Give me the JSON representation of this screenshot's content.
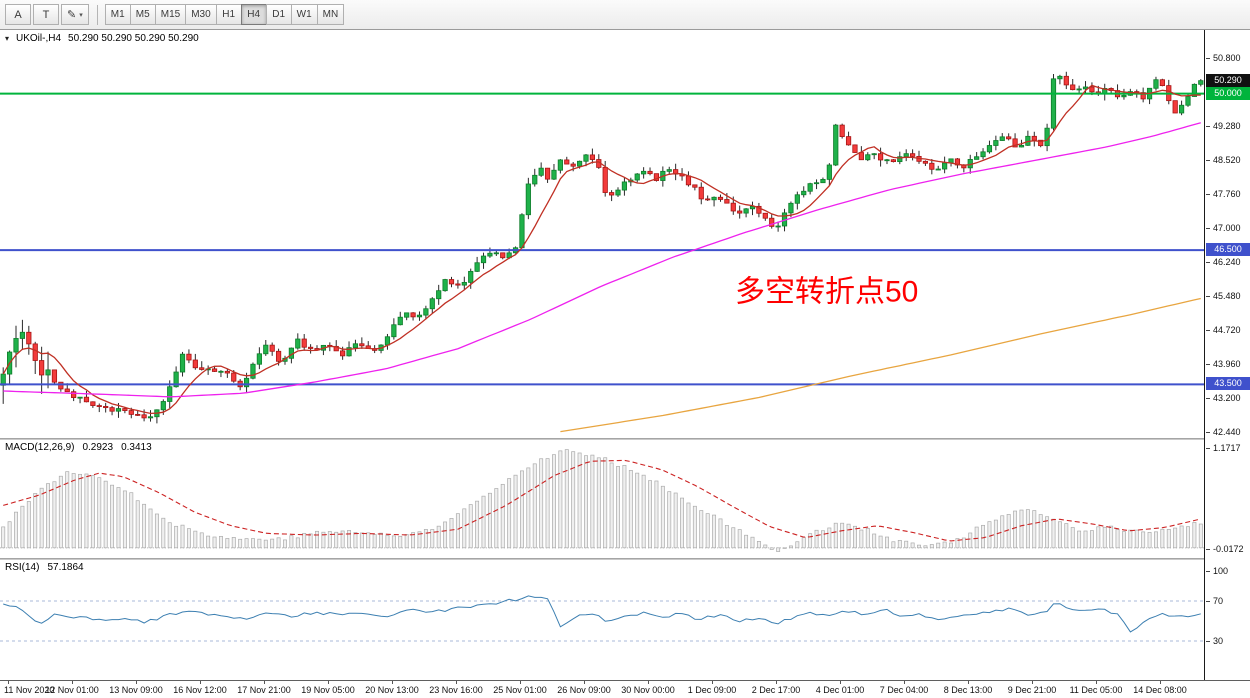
{
  "toolbar": {
    "tools": [
      {
        "id": "annotation",
        "label": "A",
        "dropdown": false
      },
      {
        "id": "text",
        "label": "T",
        "dropdown": false
      },
      {
        "id": "colors",
        "label": "✎",
        "dropdown": true
      }
    ],
    "timeframes": [
      "M1",
      "M5",
      "M15",
      "M30",
      "H1",
      "H4",
      "D1",
      "W1",
      "MN"
    ],
    "active_timeframe": "H4",
    "dropdown_glyph": "▾"
  },
  "main_chart": {
    "title": "UKOil-,H4",
    "ohlc_text": "50.290 50.290 50.290 50.290",
    "ylim": [
      42.3,
      51.4
    ],
    "axis_ticks": [
      "50.800",
      "49.280",
      "48.520",
      "47.760",
      "47.000",
      "46.240",
      "45.480",
      "44.720",
      "43.960",
      "43.200",
      "42.440"
    ],
    "price_badge": {
      "text": "50.290",
      "bg": "#111111"
    },
    "hlines": [
      {
        "price": 50.0,
        "label": "50.000",
        "color": "#00b43c"
      },
      {
        "price": 46.5,
        "label": "46.500",
        "color": "#3f51cc"
      },
      {
        "price": 43.5,
        "label": "43.500",
        "color": "#3f51cc"
      }
    ],
    "annotation": {
      "text": "多空转折点50",
      "color": "#ff0000",
      "x": 735,
      "price": 45.35
    },
    "colors": {
      "up": "#1fb14a",
      "up_border": "#0e7d2a",
      "down": "#f23b3b",
      "down_border": "#a81414",
      "wick": "#2a2a2a",
      "ma_fast": "#c03024",
      "ma_mid": "#ee22ee",
      "ma_slow": "#e8a540"
    }
  },
  "macd_panel": {
    "label": "MACD(12,26,9)",
    "value_main": "0.2923",
    "value_signal": "0.3413",
    "ylim": [
      -0.12,
      1.27
    ],
    "axis_ticks": [
      {
        "v": 1.1717,
        "label": "1.1717"
      },
      {
        "v": -0.0172,
        "label": "-0.0172"
      }
    ]
  },
  "rsi_panel": {
    "label": "RSI(14)",
    "value": "57.1864",
    "ylim": [
      -9,
      111
    ],
    "levels": [
      70,
      30
    ],
    "axis_ticks": [
      {
        "v": 100,
        "label": "100"
      },
      {
        "v": 70,
        "label": "70"
      },
      {
        "v": 30,
        "label": "30"
      }
    ]
  },
  "time_axis": {
    "labels": [
      "11 Nov 2020",
      "12 Nov 01:00",
      "13 Nov 09:00",
      "16 Nov 12:00",
      "17 Nov 21:00",
      "19 Nov 05:00",
      "20 Nov 13:00",
      "23 Nov 16:00",
      "25 Nov 01:00",
      "26 Nov 09:00",
      "30 Nov 00:00",
      "1 Dec 09:00",
      "2 Dec 17:00",
      "4 Dec 01:00",
      "7 Dec 04:00",
      "8 Dec 13:00",
      "9 Dec 21:00",
      "11 Dec 05:00",
      "14 Dec 08:00"
    ]
  },
  "chart_data": [
    {
      "type": "candlestick",
      "symbol": "UKOil-",
      "timeframe": "H4",
      "title": "UKOil-,H4 50.290 50.290 50.290 50.290",
      "x_range": [
        "11 Nov 2020",
        "14 Dec 08:00"
      ],
      "ylim": [
        42.3,
        51.4
      ],
      "y_ticks": [
        50.8,
        49.28,
        48.52,
        47.76,
        47.0,
        46.24,
        45.48,
        44.72,
        43.96,
        43.2,
        42.44
      ],
      "horizontal_levels": [
        50.0,
        46.5,
        43.5
      ],
      "last_price": 50.29,
      "close_anchors": [
        [
          0,
          43.9
        ],
        [
          0.01,
          44.35
        ],
        [
          0.022,
          44.6
        ],
        [
          0.03,
          43.9
        ],
        [
          0.045,
          43.5
        ],
        [
          0.06,
          43.2
        ],
        [
          0.075,
          43.05
        ],
        [
          0.09,
          42.95
        ],
        [
          0.105,
          42.85
        ],
        [
          0.118,
          42.7
        ],
        [
          0.13,
          42.95
        ],
        [
          0.142,
          43.6
        ],
        [
          0.15,
          44.15
        ],
        [
          0.158,
          43.9
        ],
        [
          0.17,
          43.85
        ],
        [
          0.185,
          43.75
        ],
        [
          0.198,
          43.45
        ],
        [
          0.21,
          44.0
        ],
        [
          0.22,
          44.35
        ],
        [
          0.232,
          44.0
        ],
        [
          0.245,
          44.5
        ],
        [
          0.258,
          44.25
        ],
        [
          0.27,
          44.4
        ],
        [
          0.283,
          44.15
        ],
        [
          0.295,
          44.45
        ],
        [
          0.308,
          44.2
        ],
        [
          0.32,
          44.55
        ],
        [
          0.333,
          45.1
        ],
        [
          0.345,
          44.95
        ],
        [
          0.358,
          45.35
        ],
        [
          0.37,
          45.85
        ],
        [
          0.382,
          45.65
        ],
        [
          0.395,
          46.15
        ],
        [
          0.405,
          46.5
        ],
        [
          0.418,
          46.35
        ],
        [
          0.428,
          46.6
        ],
        [
          0.438,
          47.9
        ],
        [
          0.447,
          48.35
        ],
        [
          0.455,
          48.1
        ],
        [
          0.465,
          48.55
        ],
        [
          0.475,
          48.3
        ],
        [
          0.487,
          48.65
        ],
        [
          0.497,
          48.35
        ],
        [
          0.505,
          47.6
        ],
        [
          0.515,
          47.9
        ],
        [
          0.525,
          48.1
        ],
        [
          0.535,
          48.25
        ],
        [
          0.545,
          48.1
        ],
        [
          0.555,
          48.3
        ],
        [
          0.565,
          48.15
        ],
        [
          0.575,
          47.95
        ],
        [
          0.585,
          47.6
        ],
        [
          0.595,
          47.75
        ],
        [
          0.605,
          47.5
        ],
        [
          0.615,
          47.3
        ],
        [
          0.625,
          47.55
        ],
        [
          0.635,
          47.2
        ],
        [
          0.645,
          46.95
        ],
        [
          0.655,
          47.45
        ],
        [
          0.665,
          47.8
        ],
        [
          0.677,
          48.0
        ],
        [
          0.688,
          48.1
        ],
        [
          0.695,
          49.25
        ],
        [
          0.705,
          48.9
        ],
        [
          0.715,
          48.55
        ],
        [
          0.727,
          48.65
        ],
        [
          0.74,
          48.45
        ],
        [
          0.753,
          48.7
        ],
        [
          0.765,
          48.45
        ],
        [
          0.778,
          48.3
        ],
        [
          0.79,
          48.55
        ],
        [
          0.8,
          48.35
        ],
        [
          0.812,
          48.6
        ],
        [
          0.824,
          48.85
        ],
        [
          0.836,
          49.05
        ],
        [
          0.846,
          48.8
        ],
        [
          0.856,
          49.0
        ],
        [
          0.866,
          48.85
        ],
        [
          0.872,
          49.3
        ],
        [
          0.878,
          50.55
        ],
        [
          0.885,
          50.35
        ],
        [
          0.893,
          50.05
        ],
        [
          0.903,
          50.15
        ],
        [
          0.913,
          49.95
        ],
        [
          0.923,
          50.15
        ],
        [
          0.933,
          49.9
        ],
        [
          0.943,
          50.05
        ],
        [
          0.953,
          49.85
        ],
        [
          0.962,
          50.35
        ],
        [
          0.97,
          50.15
        ],
        [
          0.977,
          49.55
        ],
        [
          0.984,
          49.75
        ],
        [
          0.992,
          50.1
        ],
        [
          1,
          50.29
        ]
      ],
      "ma_mid_anchors": [
        [
          0,
          43.35
        ],
        [
          0.08,
          43.28
        ],
        [
          0.14,
          43.22
        ],
        [
          0.2,
          43.3
        ],
        [
          0.26,
          43.55
        ],
        [
          0.32,
          43.85
        ],
        [
          0.38,
          44.3
        ],
        [
          0.44,
          44.95
        ],
        [
          0.5,
          45.7
        ],
        [
          0.56,
          46.35
        ],
        [
          0.62,
          46.9
        ],
        [
          0.68,
          47.4
        ],
        [
          0.74,
          47.85
        ],
        [
          0.8,
          48.2
        ],
        [
          0.86,
          48.5
        ],
        [
          0.92,
          48.8
        ],
        [
          0.96,
          49.05
        ],
        [
          1,
          49.35
        ]
      ],
      "ma_slow_anchors": [
        [
          0.46,
          42.42
        ],
        [
          0.55,
          42.8
        ],
        [
          0.63,
          43.2
        ],
        [
          0.71,
          43.7
        ],
        [
          0.79,
          44.15
        ],
        [
          0.87,
          44.65
        ],
        [
          0.94,
          45.05
        ],
        [
          1,
          45.42
        ]
      ]
    },
    {
      "type": "macd",
      "params": "12,26,9",
      "current_macd": 0.2923,
      "current_signal": 0.3413,
      "ylim": [
        -0.12,
        1.27
      ],
      "hist_anchors": [
        [
          0,
          0.25
        ],
        [
          0.02,
          0.55
        ],
        [
          0.05,
          0.88
        ],
        [
          0.08,
          0.85
        ],
        [
          0.11,
          0.6
        ],
        [
          0.14,
          0.3
        ],
        [
          0.17,
          0.15
        ],
        [
          0.2,
          0.1
        ],
        [
          0.24,
          0.12
        ],
        [
          0.27,
          0.2
        ],
        [
          0.3,
          0.18
        ],
        [
          0.33,
          0.14
        ],
        [
          0.36,
          0.22
        ],
        [
          0.39,
          0.5
        ],
        [
          0.42,
          0.8
        ],
        [
          0.45,
          1.05
        ],
        [
          0.47,
          1.15
        ],
        [
          0.5,
          1.05
        ],
        [
          0.53,
          0.9
        ],
        [
          0.56,
          0.65
        ],
        [
          0.59,
          0.4
        ],
        [
          0.62,
          0.15
        ],
        [
          0.645,
          -0.03
        ],
        [
          0.66,
          0.05
        ],
        [
          0.68,
          0.2
        ],
        [
          0.7,
          0.3
        ],
        [
          0.72,
          0.22
        ],
        [
          0.74,
          0.1
        ],
        [
          0.76,
          0.04
        ],
        [
          0.78,
          0.03
        ],
        [
          0.8,
          0.12
        ],
        [
          0.82,
          0.28
        ],
        [
          0.84,
          0.4
        ],
        [
          0.86,
          0.44
        ],
        [
          0.88,
          0.32
        ],
        [
          0.9,
          0.18
        ],
        [
          0.92,
          0.26
        ],
        [
          0.94,
          0.2
        ],
        [
          0.96,
          0.18
        ],
        [
          0.98,
          0.24
        ],
        [
          1,
          0.29
        ]
      ],
      "signal_anchors": [
        [
          0,
          0.5
        ],
        [
          0.03,
          0.62
        ],
        [
          0.06,
          0.8
        ],
        [
          0.08,
          0.88
        ],
        [
          0.1,
          0.84
        ],
        [
          0.13,
          0.65
        ],
        [
          0.16,
          0.42
        ],
        [
          0.19,
          0.26
        ],
        [
          0.22,
          0.17
        ],
        [
          0.26,
          0.15
        ],
        [
          0.3,
          0.17
        ],
        [
          0.34,
          0.15
        ],
        [
          0.38,
          0.22
        ],
        [
          0.42,
          0.5
        ],
        [
          0.46,
          0.85
        ],
        [
          0.49,
          1.02
        ],
        [
          0.52,
          1.03
        ],
        [
          0.55,
          0.92
        ],
        [
          0.58,
          0.72
        ],
        [
          0.61,
          0.48
        ],
        [
          0.64,
          0.25
        ],
        [
          0.67,
          0.12
        ],
        [
          0.7,
          0.2
        ],
        [
          0.73,
          0.26
        ],
        [
          0.76,
          0.18
        ],
        [
          0.79,
          0.08
        ],
        [
          0.82,
          0.12
        ],
        [
          0.85,
          0.26
        ],
        [
          0.88,
          0.34
        ],
        [
          0.91,
          0.28
        ],
        [
          0.94,
          0.2
        ],
        [
          0.97,
          0.24
        ],
        [
          1,
          0.34
        ]
      ]
    },
    {
      "type": "rsi",
      "period": 14,
      "current": 57.1864,
      "levels": [
        70,
        30
      ],
      "ylim": [
        -9,
        111
      ],
      "anchors": [
        [
          0,
          66
        ],
        [
          0.015,
          62
        ],
        [
          0.03,
          47
        ],
        [
          0.045,
          58
        ],
        [
          0.06,
          54
        ],
        [
          0.08,
          51
        ],
        [
          0.1,
          53
        ],
        [
          0.12,
          49
        ],
        [
          0.14,
          57
        ],
        [
          0.16,
          60
        ],
        [
          0.18,
          55
        ],
        [
          0.2,
          52
        ],
        [
          0.22,
          58
        ],
        [
          0.24,
          54
        ],
        [
          0.26,
          59
        ],
        [
          0.28,
          56
        ],
        [
          0.3,
          58
        ],
        [
          0.32,
          55
        ],
        [
          0.34,
          61
        ],
        [
          0.36,
          59
        ],
        [
          0.38,
          63
        ],
        [
          0.4,
          66
        ],
        [
          0.42,
          70
        ],
        [
          0.44,
          74
        ],
        [
          0.455,
          72
        ],
        [
          0.465,
          44
        ],
        [
          0.478,
          54
        ],
        [
          0.49,
          58
        ],
        [
          0.505,
          50
        ],
        [
          0.52,
          55
        ],
        [
          0.535,
          58
        ],
        [
          0.55,
          54
        ],
        [
          0.565,
          57
        ],
        [
          0.58,
          52
        ],
        [
          0.6,
          56
        ],
        [
          0.615,
          50
        ],
        [
          0.63,
          53
        ],
        [
          0.645,
          47
        ],
        [
          0.66,
          54
        ],
        [
          0.675,
          58
        ],
        [
          0.69,
          55
        ],
        [
          0.705,
          60
        ],
        [
          0.72,
          56
        ],
        [
          0.735,
          62
        ],
        [
          0.75,
          54
        ],
        [
          0.765,
          57
        ],
        [
          0.78,
          51
        ],
        [
          0.8,
          56
        ],
        [
          0.82,
          59
        ],
        [
          0.84,
          62
        ],
        [
          0.855,
          57
        ],
        [
          0.87,
          59
        ],
        [
          0.878,
          68
        ],
        [
          0.89,
          63
        ],
        [
          0.9,
          60
        ],
        [
          0.915,
          62
        ],
        [
          0.93,
          57
        ],
        [
          0.942,
          39
        ],
        [
          0.955,
          52
        ],
        [
          0.97,
          57
        ],
        [
          0.985,
          54
        ],
        [
          1,
          57.2
        ]
      ]
    }
  ]
}
